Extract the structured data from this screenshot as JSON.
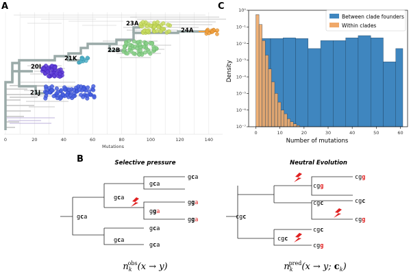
{
  "panel_labels": {
    "a": "A",
    "b": "B",
    "c": "C"
  },
  "panel_a": {
    "xlabel": "Mutations",
    "ticks": [
      "0",
      "20",
      "40",
      "60",
      "80",
      "100",
      "120",
      "140"
    ],
    "clades": [
      "23A",
      "24A",
      "21K",
      "22B",
      "20I",
      "21J"
    ],
    "colors": {
      "backbone": "#9aaaa8",
      "c23A": "#c8dc60",
      "c24A": "#f0a040",
      "c21K": "#50b0c8",
      "c22B": "#88d088",
      "c20I": "#6040d8",
      "c21J": "#4860e0",
      "grey": "#b0b0b0"
    }
  },
  "panel_b": {
    "left_title": "Selective pressure",
    "right_title": "Neutral Evolution",
    "left_formula": {
      "n": "n",
      "sub": "k",
      "sup": "obs",
      "args": "(x → y)"
    },
    "right_formula": {
      "n": "n",
      "sub": "k",
      "sup": "pred",
      "args": "(x → y; ",
      "cbold": "c",
      "csub": "k",
      "close": ")"
    },
    "left_codons": {
      "root": {
        "p1": "g",
        "p2": "c",
        "p3": "a"
      },
      "n1": {
        "p1": "g",
        "p2": "c",
        "p3": "a"
      },
      "n2": {
        "p1": "g",
        "p2": "c",
        "p3": "a"
      },
      "n3": {
        "p1": "g",
        "p2": "c",
        "p3": "a"
      },
      "n4": {
        "p1": "g",
        "p2": "g",
        "p3": "a"
      },
      "leaf1": {
        "p1": "g",
        "p2": "c",
        "p3": "a"
      },
      "leaf2": {
        "p1": "g",
        "p2": "g",
        "p3": "a"
      },
      "leaf3": {
        "p1": "g",
        "p2": "g",
        "p3": "a"
      },
      "leaf4": {
        "p1": "g",
        "p2": "c",
        "p3": "a"
      },
      "leaf5": {
        "p1": "g",
        "p2": "c",
        "p3": "a"
      }
    },
    "right_codons": {
      "root": {
        "p1": "cg",
        "p2": "c"
      },
      "n1": {
        "p1": "cg",
        "p2": "g"
      },
      "n2": {
        "p1": "cg",
        "p2": "c"
      },
      "n3": {
        "p1": "cg",
        "p2": "c"
      },
      "leaf1": {
        "p1": "cg",
        "p2": "g"
      },
      "leaf2": {
        "p1": "cg",
        "p2": "c"
      },
      "leaf3": {
        "p1": "cg",
        "p2": "g"
      },
      "leaf4": {
        "p1": "cg",
        "p2": "c"
      },
      "leaf5": {
        "p1": "cg",
        "p2": "g"
      }
    },
    "red": "#e02020"
  },
  "chart_data": {
    "type": "bar",
    "title": "",
    "xlabel": "Number of mutations",
    "ylabel": "Density",
    "yscale": "log",
    "ylim": [
      1e-07,
      1
    ],
    "xlim": [
      -3,
      63
    ],
    "xticks": [
      "0",
      "10",
      "20",
      "30",
      "40",
      "50",
      "60"
    ],
    "yticks": [
      "10⁻⁷",
      "10⁻⁶",
      "10⁻⁵",
      "10⁻⁴",
      "10⁻³",
      "10⁻²",
      "10⁻¹",
      "10⁰"
    ],
    "series": [
      {
        "name": "Between clade founders",
        "color": "#3f86bf",
        "bin_edges": [
          2,
          6.1,
          11.3,
          16.5,
          21.7,
          26.9,
          32.1,
          37.3,
          42.5,
          47.7,
          52.9,
          58.1,
          61
        ],
        "values": [
          0.02,
          0.02,
          0.022,
          0.02,
          0.005,
          0.015,
          0.015,
          0.022,
          0.03,
          0.022,
          0.0008,
          0.005
        ]
      },
      {
        "name": "Within clades",
        "color": "#f0a868",
        "bin_edges": [
          0,
          1.3,
          2.6,
          3.9,
          5.2,
          6.5,
          7.8,
          9.1,
          10.4,
          11.7,
          13,
          14.3,
          15.6,
          16.9,
          18.2
        ],
        "values": [
          0.55,
          0.14,
          0.015,
          0.002,
          0.0003,
          5e-05,
          1e-05,
          3e-06,
          1e-06,
          6e-07,
          3e-07,
          2e-07,
          1.5e-07,
          1.2e-07
        ]
      }
    ]
  }
}
